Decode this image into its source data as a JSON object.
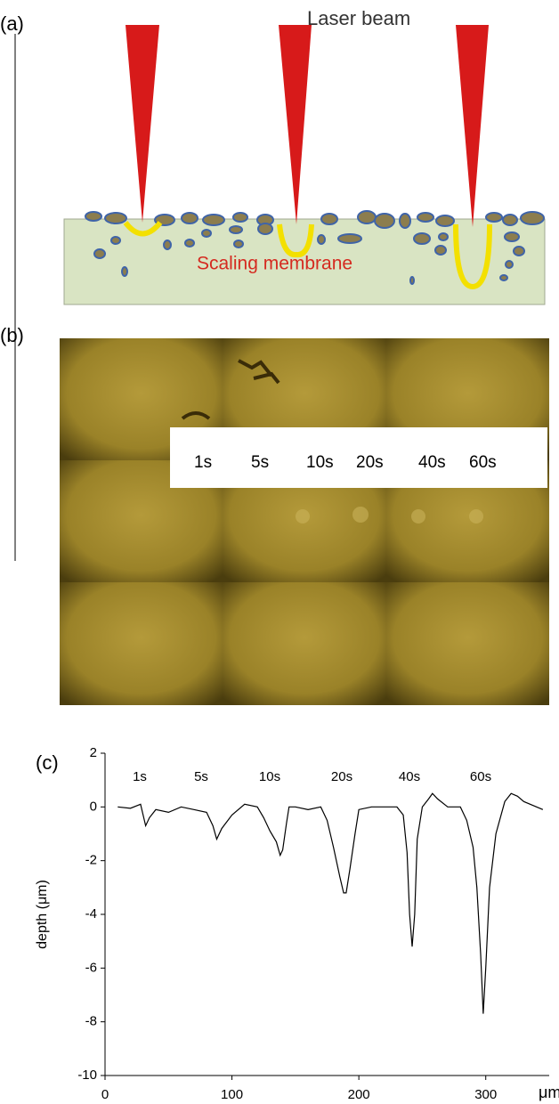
{
  "panel_a": {
    "label": "(a)",
    "beam_label": "Laser beam",
    "membrane_label": "Scaling membrane"
  },
  "panel_b": {
    "label": "(b)",
    "times": [
      "1s",
      "5s",
      "10s",
      "20s",
      "40s",
      "60s"
    ]
  },
  "chart_data": {
    "type": "line",
    "label": "(c)",
    "y_label": "depth (μm)",
    "x_label": "μm",
    "annotations": [
      "1s",
      "5s",
      "10s",
      "20s",
      "40s",
      "60s"
    ],
    "x": [
      10,
      20,
      28,
      30,
      32,
      35,
      40,
      50,
      60,
      70,
      80,
      85,
      88,
      92,
      100,
      110,
      120,
      125,
      130,
      135,
      138,
      140,
      143,
      145,
      150,
      160,
      170,
      175,
      180,
      185,
      188,
      190,
      193,
      197,
      200,
      210,
      220,
      230,
      235,
      238,
      240,
      242,
      244,
      246,
      250,
      255,
      258,
      262,
      270,
      280,
      285,
      290,
      293,
      296,
      298,
      300,
      303,
      308,
      315,
      320,
      325,
      330,
      340,
      345
    ],
    "series": [
      {
        "color": "#000000",
        "values": [
          0,
          -0.05,
          0.1,
          -0.3,
          -0.7,
          -0.4,
          -0.1,
          -0.2,
          0,
          -0.1,
          -0.2,
          -0.7,
          -1.2,
          -0.8,
          -0.3,
          0.1,
          0,
          -0.4,
          -0.9,
          -1.3,
          -1.8,
          -1.6,
          -0.6,
          0,
          0,
          -0.1,
          0,
          -0.5,
          -1.5,
          -2.6,
          -3.2,
          -3.2,
          -2.3,
          -1.0,
          -0.1,
          0,
          0,
          0,
          -0.3,
          -1.7,
          -4.0,
          -5.2,
          -4.0,
          -1.2,
          0,
          0.3,
          0.5,
          0.3,
          0,
          0,
          -0.5,
          -1.5,
          -3,
          -5.5,
          -7.7,
          -6,
          -3,
          -1.0,
          0.2,
          0.5,
          0.4,
          0.2,
          0,
          -0.1
        ]
      }
    ],
    "xlim": [
      0,
      350
    ],
    "xticks": [
      0,
      100,
      200,
      300
    ],
    "ylim": [
      -10,
      2
    ],
    "yticks": [
      -10,
      -8,
      -6,
      -4,
      -2,
      0,
      2
    ]
  }
}
